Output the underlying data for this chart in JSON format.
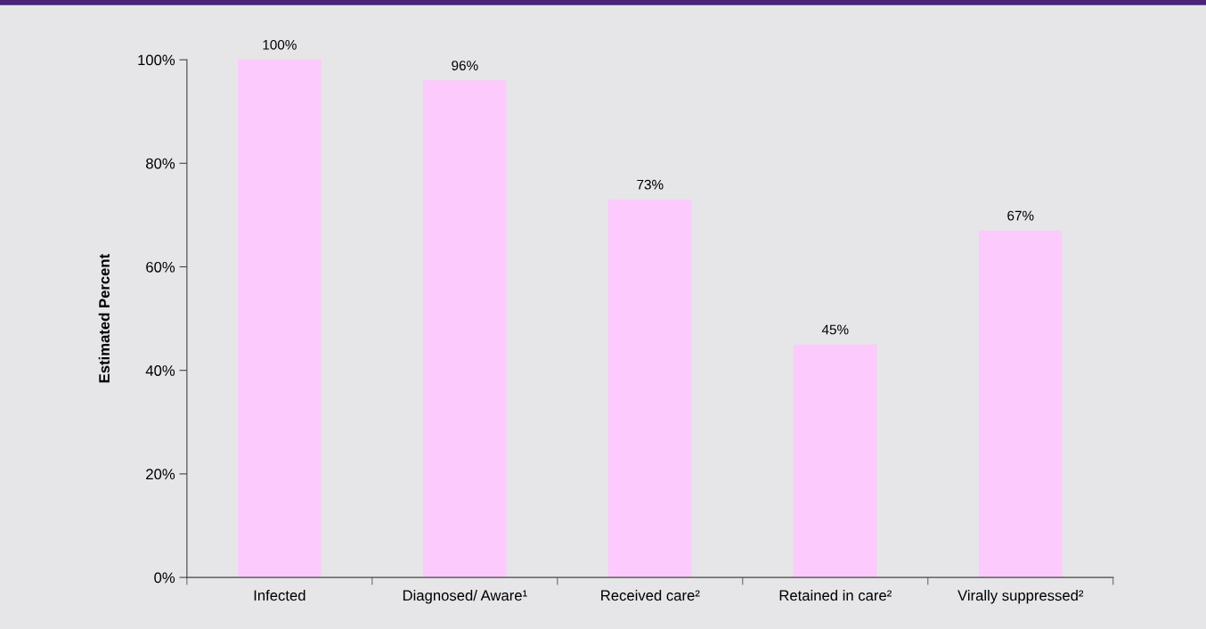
{
  "chart_data": {
    "type": "bar",
    "ylabel": "Estimated Percent",
    "categories": [
      "Infected",
      "Diagnosed/ Aware¹",
      "Received care²",
      "Retained in care²",
      "Virally suppressed²"
    ],
    "values": [
      100,
      96,
      73,
      45,
      67
    ],
    "color": "#fccafc",
    "value_labels": [
      "100%",
      "96%",
      "73%",
      "45%",
      "67%"
    ],
    "ylim": [
      0,
      100
    ],
    "yticks": [
      {
        "value": 0,
        "label": "0%"
      },
      {
        "value": 20,
        "label": "20%"
      },
      {
        "value": 40,
        "label": "40%"
      },
      {
        "value": 60,
        "label": "60%"
      },
      {
        "value": 80,
        "label": "80%"
      },
      {
        "value": 100,
        "label": "100%"
      }
    ],
    "grid": false
  }
}
